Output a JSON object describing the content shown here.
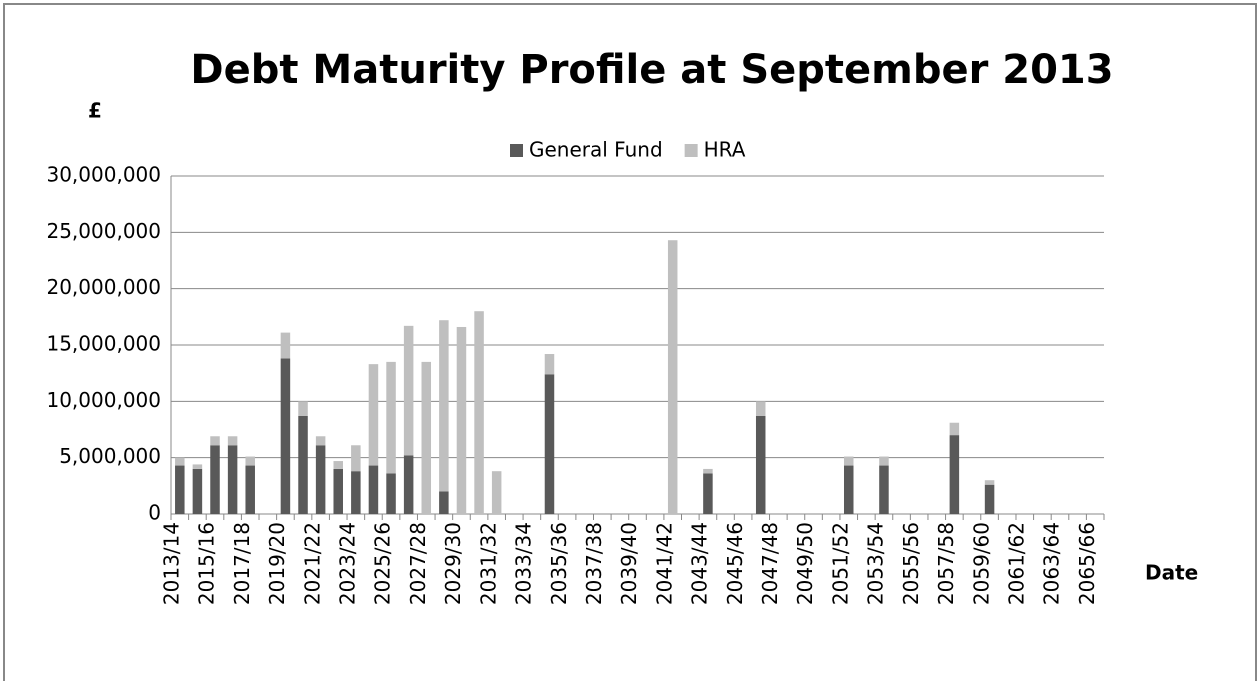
{
  "chart_data": {
    "type": "bar",
    "stacked": true,
    "title": "Debt Maturity Profile at September 2013",
    "y_label": "£",
    "x_label": "Date",
    "categories": [
      "2013/14",
      null,
      "2015/16",
      null,
      "2017/18",
      null,
      "2019/20",
      null,
      "2021/22",
      null,
      "2023/24",
      null,
      "2025/26",
      null,
      "2027/28",
      null,
      "2029/30",
      null,
      "2031/32",
      null,
      "2033/34",
      null,
      "2035/36",
      null,
      "2037/38",
      null,
      "2039/40",
      null,
      "2041/42",
      null,
      "2043/44",
      null,
      "2045/46",
      null,
      "2047/48",
      null,
      "2049/50",
      null,
      "2051/52",
      null,
      "2053/54",
      null,
      "2055/56",
      null,
      "2057/58",
      null,
      "2059/60",
      null,
      "2061/62",
      null,
      "2063/64",
      null,
      "2065/66"
    ],
    "series": [
      {
        "name": "General Fund",
        "color": "#595959",
        "values": [
          4300000,
          4000000,
          6100000,
          6100000,
          4300000,
          0,
          13800000,
          8700000,
          6100000,
          4000000,
          3800000,
          4300000,
          3600000,
          5200000,
          0,
          2000000,
          0,
          0,
          0,
          0,
          0,
          12400000,
          0,
          0,
          0,
          0,
          0,
          0,
          0,
          0,
          3600000,
          0,
          0,
          8700000,
          0,
          0,
          0,
          0,
          4300000,
          0,
          4300000,
          0,
          0,
          0,
          7000000,
          0,
          2600000,
          0,
          0,
          0,
          0,
          0,
          0
        ]
      },
      {
        "name": "HRA",
        "color": "#bfbfbf",
        "values": [
          700000,
          400000,
          800000,
          800000,
          800000,
          0,
          2300000,
          1300000,
          800000,
          700000,
          2300000,
          9000000,
          9900000,
          11500000,
          13500000,
          15200000,
          16600000,
          18000000,
          3800000,
          0,
          0,
          1800000,
          0,
          0,
          0,
          0,
          0,
          0,
          24300000,
          0,
          400000,
          0,
          0,
          1300000,
          0,
          0,
          0,
          0,
          800000,
          0,
          800000,
          0,
          0,
          0,
          1100000,
          0,
          400000,
          0,
          0,
          0,
          0,
          0,
          0
        ]
      }
    ],
    "ylim": [
      0,
      30000000
    ],
    "yticks": [
      0,
      {
        "value": 5000000,
        "label": "5,000,000"
      },
      {
        "value": 10000000,
        "label": "10,000,000"
      },
      {
        "value": 15000000,
        "label": "15,000,000"
      },
      {
        "value": 20000000,
        "label": "20,000,000"
      },
      {
        "value": 25000000,
        "label": "25,000,000"
      },
      {
        "value": 30000000,
        "label": "30,000,000"
      }
    ],
    "grid": true,
    "legend": "top"
  }
}
